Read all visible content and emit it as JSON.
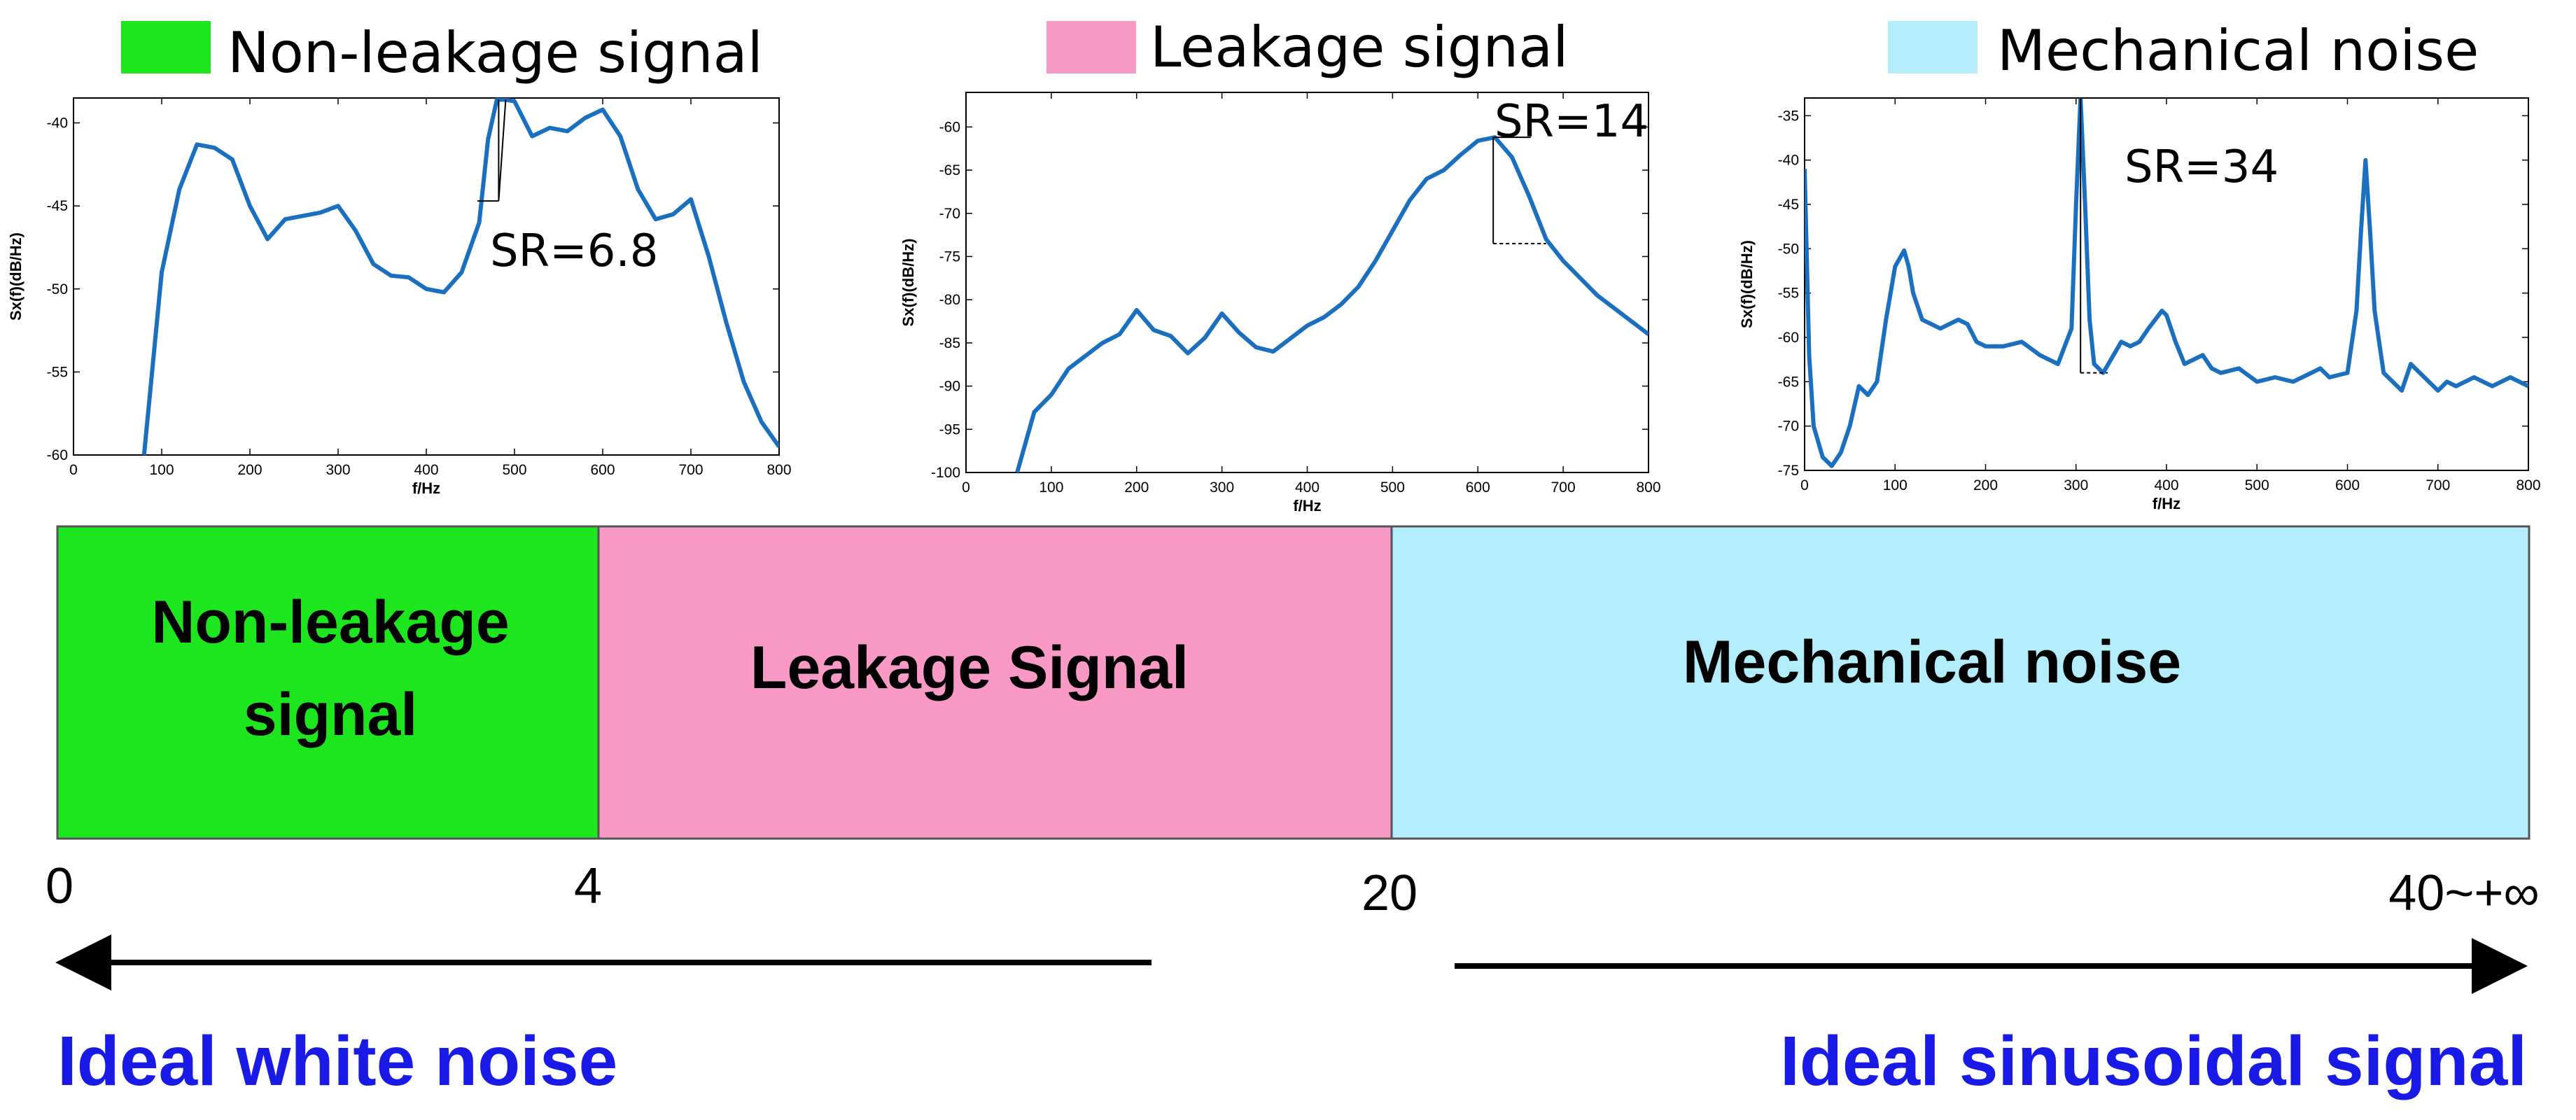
{
  "legend": {
    "non_leakage": {
      "label": "Non-leakage signal",
      "color": "#1ee61e"
    },
    "leakage": {
      "label": "Leakage signal",
      "color": "#f99ac6"
    },
    "mechanical": {
      "label": "Mechanical noise",
      "color": "#b3ecfa"
    }
  },
  "chart_data": [
    {
      "type": "line",
      "xlabel": "f/Hz",
      "ylabel": "Sx(f)(dB/Hz)",
      "xlim": [
        0,
        800
      ],
      "ylim": [
        -60,
        -38.5
      ],
      "xticks": [
        0,
        100,
        200,
        300,
        400,
        500,
        600,
        700,
        800
      ],
      "yticks": [
        -60,
        -55,
        -50,
        -45,
        -40
      ],
      "annotation": "SR=6.8",
      "x": [
        80,
        100,
        120,
        140,
        160,
        180,
        200,
        220,
        240,
        260,
        280,
        300,
        320,
        340,
        360,
        380,
        400,
        420,
        440,
        460,
        470,
        480,
        490,
        500,
        520,
        540,
        560,
        580,
        600,
        620,
        640,
        660,
        680,
        700,
        720,
        740,
        760,
        780,
        800
      ],
      "y": [
        -60,
        -49,
        -44,
        -41.3,
        -41.5,
        -42.2,
        -45,
        -47,
        -45.8,
        -45.6,
        -45.4,
        -45,
        -46.5,
        -48.5,
        -49.2,
        -49.3,
        -50,
        -50.2,
        -49,
        -46,
        -41,
        -38.6,
        -38.6,
        -38.7,
        -40.8,
        -40.3,
        -40.5,
        -39.7,
        -39.2,
        -40.8,
        -44,
        -45.8,
        -45.5,
        -44.6,
        -48,
        -52,
        -55.6,
        -58,
        -59.5
      ]
    },
    {
      "type": "line",
      "xlabel": "f/Hz",
      "ylabel": "Sx(f)(dB/Hz)",
      "xlim": [
        0,
        800
      ],
      "ylim": [
        -100,
        -56
      ],
      "xticks": [
        0,
        100,
        200,
        300,
        400,
        500,
        600,
        700,
        800
      ],
      "yticks": [
        -100,
        -95,
        -90,
        -85,
        -80,
        -75,
        -70,
        -65,
        -60
      ],
      "annotation": "SR=14",
      "x": [
        60,
        80,
        100,
        120,
        140,
        160,
        180,
        200,
        220,
        240,
        260,
        280,
        300,
        320,
        340,
        360,
        380,
        400,
        420,
        440,
        460,
        480,
        500,
        520,
        540,
        560,
        580,
        600,
        620,
        640,
        660,
        680,
        700,
        720,
        740,
        760,
        780,
        800
      ],
      "y": [
        -100,
        -93,
        -91,
        -88,
        -86.5,
        -85,
        -84,
        -81.2,
        -83.5,
        -84.2,
        -86.2,
        -84.4,
        -81.6,
        -83.8,
        -85.5,
        -86,
        -84.5,
        -83,
        -82,
        -80.5,
        -78.5,
        -75.5,
        -72,
        -68.5,
        -66,
        -65,
        -63.2,
        -61.6,
        -61.2,
        -63.5,
        -68,
        -73,
        -75.5,
        -77.5,
        -79.5,
        -81,
        -82.5,
        -84
      ]
    },
    {
      "type": "line",
      "xlabel": "f/Hz",
      "ylabel": "Sx(f)(dB/Hz)",
      "xlim": [
        0,
        800
      ],
      "ylim": [
        -75,
        -33
      ],
      "xticks": [
        0,
        100,
        200,
        300,
        400,
        500,
        600,
        700,
        800
      ],
      "yticks": [
        -75,
        -70,
        -65,
        -60,
        -55,
        -50,
        -45,
        -40,
        -35
      ],
      "annotation": "SR=34",
      "x": [
        0,
        5,
        10,
        20,
        30,
        40,
        50,
        60,
        70,
        80,
        90,
        100,
        110,
        115,
        120,
        130,
        150,
        170,
        180,
        190,
        200,
        220,
        240,
        260,
        280,
        295,
        300,
        305,
        310,
        315,
        320,
        330,
        350,
        360,
        370,
        380,
        395,
        400,
        410,
        420,
        440,
        450,
        460,
        480,
        500,
        520,
        540,
        560,
        570,
        580,
        600,
        610,
        615,
        620,
        625,
        630,
        640,
        660,
        670,
        680,
        700,
        710,
        720,
        740,
        760,
        780,
        800
      ],
      "y": [
        -41,
        -62,
        -70,
        -73.5,
        -74.5,
        -73,
        -70,
        -65.5,
        -66.5,
        -65,
        -58,
        -52,
        -50.2,
        -52,
        -55,
        -58,
        -59,
        -58,
        -58.5,
        -60.5,
        -61,
        -61,
        -60.5,
        -62,
        -63,
        -59,
        -45,
        -33,
        -45,
        -58,
        -63,
        -64,
        -60.5,
        -61,
        -60.5,
        -59,
        -57,
        -57.5,
        -60.5,
        -63,
        -62,
        -63.5,
        -64,
        -63.5,
        -65,
        -64.5,
        -65,
        -64,
        -63.5,
        -64.5,
        -64,
        -57,
        -48,
        -40,
        -48,
        -57,
        -64,
        -66,
        -63,
        -64,
        -66,
        -65,
        -65.5,
        -64.5,
        -65.5,
        -64.5,
        -65.5
      ]
    }
  ],
  "bands": [
    {
      "label_lines": [
        "Non-leakage",
        "signal"
      ],
      "color": "#1ee61e"
    },
    {
      "label_lines": [
        "Leakage Signal"
      ],
      "color": "#f99ac6"
    },
    {
      "label_lines": [
        "Mechanical noise"
      ],
      "color": "#b3ecfa"
    }
  ],
  "scale_labels": [
    "0",
    "4",
    "20",
    "40~+∞"
  ],
  "ideal_left": "Ideal white noise",
  "ideal_right": "Ideal sinusoidal signal"
}
